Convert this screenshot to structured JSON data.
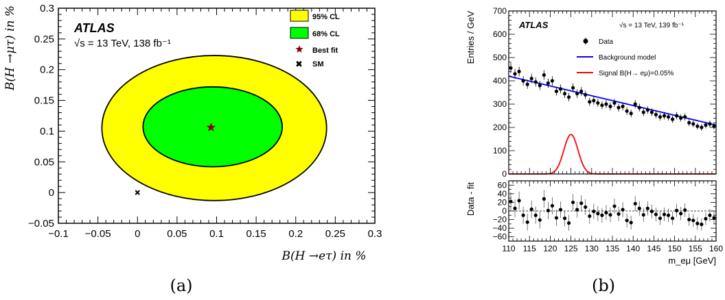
{
  "chart_data": [
    {
      "type": "contour",
      "panel_label": "(a)",
      "xlabel": "B(H →eτ) in %",
      "ylabel": "B(H →μτ) in %",
      "xlim": [
        -0.1,
        0.3
      ],
      "ylim": [
        -0.05,
        0.3
      ],
      "xticks": [
        "−0.1",
        "−0.05",
        "0",
        "0.05",
        "0.1",
        "0.15",
        "0.2",
        "0.25",
        "0.3"
      ],
      "yticks": [
        "−0.05",
        "0",
        "0.05",
        "0.1",
        "0.15",
        "0.2",
        "0.25",
        "0.3"
      ],
      "experiment": "ATLAS",
      "energy_lumi": "√s = 13 TeV, 138 fb⁻¹",
      "regions": [
        {
          "name": "95% CL",
          "color": "#ffff00",
          "center": [
            0.097,
            0.105
          ],
          "rx": 0.142,
          "ry": 0.118
        },
        {
          "name": "68% CL",
          "color": "#00ff00",
          "center": [
            0.095,
            0.107
          ],
          "rx": 0.088,
          "ry": 0.065
        }
      ],
      "best_fit": {
        "name": "Best fit",
        "x": 0.093,
        "y": 0.106,
        "color": "#8b0000"
      },
      "sm": {
        "name": "SM",
        "x": 0.0,
        "y": 0.0
      },
      "legend_position": "top-right"
    },
    {
      "type": "scatter+line",
      "panel_label": "(b)",
      "experiment": "ATLAS",
      "energy_lumi": "√s = 13 TeV, 139 fb⁻¹",
      "xlabel": "m_eμ [GeV]",
      "ylabel_top": "Entries / GeV",
      "ylabel_bottom": "Data - fit",
      "xlim": [
        110,
        160
      ],
      "ylim_top": [
        0,
        700
      ],
      "ylim_bottom": [
        -70,
        70
      ],
      "xticks": [
        "110",
        "115",
        "120",
        "125",
        "130",
        "135",
        "140",
        "145",
        "150",
        "155",
        "160"
      ],
      "yticks_top": [
        "0",
        "100",
        "200",
        "300",
        "400",
        "500",
        "600",
        "700"
      ],
      "yticks_bottom": [
        "−60",
        "−40",
        "−20",
        "0",
        "20",
        "40",
        "60"
      ],
      "legend_position": "top-right",
      "legend": [
        {
          "name": "Data"
        },
        {
          "name": "Background model",
          "color": "#0000ff"
        },
        {
          "name": "Signal B(H→ eμ)=0.05%",
          "color": "#ff0000"
        }
      ],
      "background_model": {
        "x": [
          110,
          160
        ],
        "y": [
          420,
          210
        ]
      },
      "signal": {
        "peak_x": 125,
        "peak_y": 170,
        "sigma": 1.7
      },
      "data_x": [
        110.5,
        111.5,
        112.5,
        113.5,
        114.5,
        115.5,
        116.5,
        117.5,
        118.5,
        119.5,
        120.5,
        121.5,
        122.5,
        123.5,
        124.5,
        125.5,
        126.5,
        127.5,
        128.5,
        129.5,
        130.5,
        131.5,
        132.5,
        133.5,
        134.5,
        135.5,
        136.5,
        137.5,
        138.5,
        139.5,
        140.5,
        141.5,
        142.5,
        143.5,
        144.5,
        145.5,
        146.5,
        147.5,
        148.5,
        149.5,
        150.5,
        151.5,
        152.5,
        153.5,
        154.5,
        155.5,
        156.5,
        157.5,
        158.5,
        159.5
      ],
      "data_y": [
        455,
        430,
        440,
        400,
        385,
        410,
        395,
        380,
        425,
        390,
        400,
        355,
        365,
        345,
        330,
        370,
        345,
        355,
        340,
        310,
        315,
        305,
        295,
        300,
        290,
        305,
        285,
        290,
        270,
        260,
        300,
        285,
        265,
        275,
        265,
        255,
        245,
        250,
        245,
        235,
        250,
        240,
        245,
        220,
        215,
        205,
        200,
        210,
        215,
        205
      ],
      "residual_y": [
        22,
        6,
        24,
        -10,
        -26,
        4,
        -10,
        -21,
        28,
        1,
        12,
        -16,
        3,
        -17,
        -28,
        20,
        3,
        18,
        9,
        -12,
        -1,
        -6,
        -10,
        -4,
        -9,
        11,
        -7,
        3,
        -22,
        -27,
        17,
        6,
        -9,
        6,
        -1,
        -8,
        -17,
        -8,
        -10,
        -17,
        1,
        -6,
        2,
        -20,
        -22,
        -29,
        -31,
        -18,
        -10,
        -16
      ]
    }
  ]
}
